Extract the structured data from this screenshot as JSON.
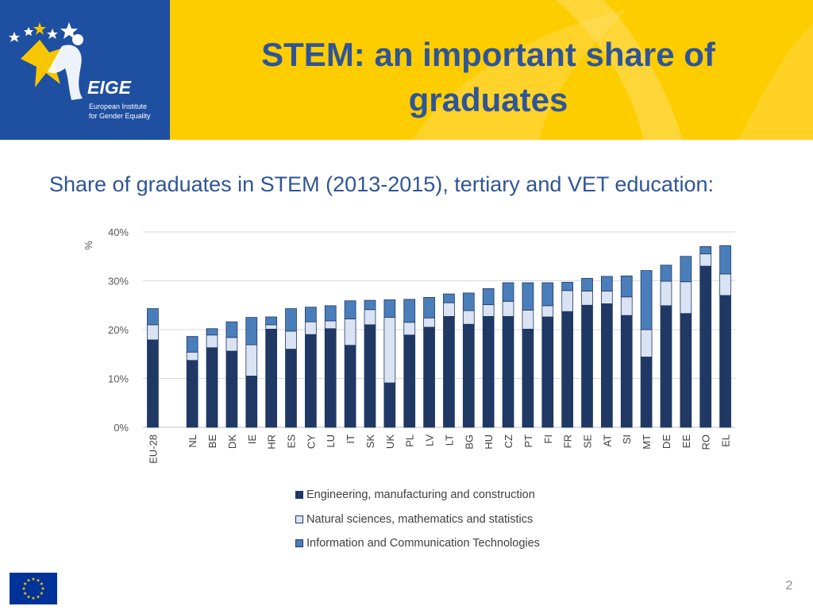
{
  "header": {
    "title": "STEM: an important share of graduates",
    "logo": {
      "name": "EIGE",
      "text": "European Institute for Gender Equality",
      "colors": {
        "background": "#1f4fa0",
        "gold": "#f7c600",
        "white": "#ffffff"
      }
    },
    "background": "#fecd00"
  },
  "subtitle": "Share of graduates in STEM (2013-2015), tertiary and VET education:",
  "chart_data": {
    "type": "bar",
    "stacked": true,
    "ylabel": "%",
    "xlabel": "",
    "ylim": [
      0,
      40
    ],
    "yticks": [
      "0%",
      "10%",
      "20%",
      "30%",
      "40%"
    ],
    "grid": true,
    "legend_position": "bottom",
    "categories": [
      "EU-28",
      "NL",
      "BE",
      "DK",
      "IE",
      "HR",
      "ES",
      "CY",
      "LU",
      "IT",
      "SK",
      "UK",
      "PL",
      "LV",
      "LT",
      "BG",
      "HU",
      "CZ",
      "PT",
      "FI",
      "FR",
      "SE",
      "AT",
      "SI",
      "MT",
      "DE",
      "EE",
      "RO",
      "EL"
    ],
    "gap_after_index": 0,
    "series": [
      {
        "name": "Engineering, manufacturing and construction",
        "color": "#203864",
        "values": [
          17.9,
          13.7,
          16.3,
          15.6,
          10.5,
          20.1,
          16,
          19,
          20.2,
          16.8,
          21,
          9.1,
          18.9,
          20.5,
          22.7,
          21.1,
          22.7,
          22.7,
          20.1,
          22.6,
          23.7,
          25,
          25.3,
          22.9,
          14.4,
          24.9,
          23.3,
          33,
          27
        ]
      },
      {
        "name": "Natural sciences, mathematics and statistics",
        "color": "#dae3f3",
        "values": [
          3.1,
          1.7,
          2.6,
          2.8,
          6.4,
          0.9,
          3.7,
          2.6,
          1.6,
          5.4,
          3.1,
          13.4,
          2.6,
          1.9,
          2.8,
          2.8,
          2.4,
          3.1,
          3.9,
          2.3,
          4.3,
          2.9,
          2.6,
          3.8,
          5.6,
          5,
          6.5,
          2.5,
          4.4
        ]
      },
      {
        "name": "Information and Communication Technologies",
        "color": "#4a7ebb",
        "values": [
          3.3,
          3.2,
          1.3,
          3.2,
          5.6,
          1.6,
          4.6,
          3,
          3.1,
          3.7,
          1.9,
          3.6,
          4.7,
          4.2,
          1.8,
          3.6,
          3.3,
          3.8,
          5.6,
          4.7,
          1.7,
          2.6,
          3,
          4.3,
          12.1,
          3.3,
          5.2,
          1.5,
          5.8
        ]
      }
    ]
  },
  "footer": {
    "page_number": "2",
    "flag": {
      "name": "EU flag",
      "colors": {
        "blue": "#003399",
        "gold": "#ffcc00"
      }
    }
  }
}
